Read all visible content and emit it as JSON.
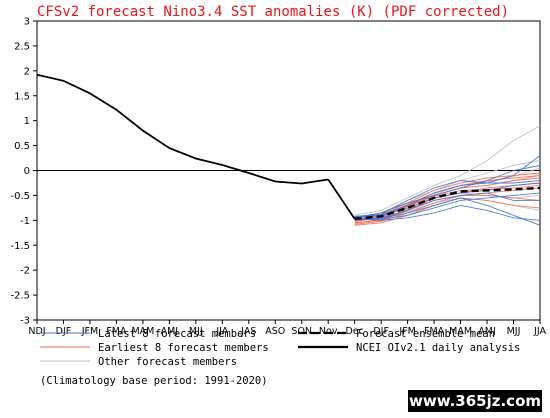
{
  "chart_data": {
    "type": "line",
    "title": "CFSv2 forecast Nino3.4 SST anomalies (K) (PDF corrected)",
    "title_color": "#e8151b",
    "categories": [
      "NDJ",
      "DJF",
      "JFM",
      "FMA",
      "MAM",
      "AMJ",
      "MJJ",
      "JJA",
      "JAS",
      "ASO",
      "SON",
      "Nov",
      "Dec",
      "DJF",
      "JFM",
      "FMA",
      "MAM",
      "AMJ",
      "MJJ",
      "JJA"
    ],
    "ylim": [
      -3,
      3
    ],
    "yticks": [
      "3",
      "2.5",
      "2",
      "1.5",
      "1",
      "0.5",
      "0",
      "-0.5",
      "-1",
      "-1.5",
      "-2",
      "-2.5",
      "-3"
    ],
    "zero_line": true,
    "observed": {
      "name": "NCEI OIv2.1 daily analysis",
      "color": "#000000",
      "x_index": [
        0,
        1,
        2,
        3,
        4,
        5,
        6,
        7,
        8,
        9,
        10,
        11
      ],
      "values": [
        1.92,
        1.8,
        1.55,
        1.22,
        0.8,
        0.45,
        0.24,
        0.11,
        -0.05,
        -0.22,
        -0.26,
        -0.18
      ]
    },
    "ensemble_mean": {
      "name": "Forecast ensemble mean",
      "color": "#000000",
      "x_index": [
        12,
        13,
        14,
        15,
        16,
        17,
        18,
        19
      ],
      "values": [
        -0.97,
        -0.92,
        -0.75,
        -0.55,
        -0.42,
        -0.4,
        -0.38,
        -0.35
      ]
    },
    "latest_members": {
      "name": "Latest 8 forecast members",
      "color": "#3f6fd6",
      "x_index": [
        12,
        13,
        14,
        15,
        16,
        17,
        18,
        19
      ],
      "members": [
        [
          -0.95,
          -0.9,
          -0.7,
          -0.45,
          -0.3,
          -0.25,
          -0.1,
          0.3
        ],
        [
          -0.98,
          -0.96,
          -0.85,
          -0.7,
          -0.55,
          -0.7,
          -0.9,
          -1.1
        ],
        [
          -0.92,
          -0.88,
          -0.6,
          -0.35,
          -0.2,
          -0.25,
          -0.25,
          -0.2
        ],
        [
          -0.96,
          -0.98,
          -0.9,
          -0.75,
          -0.6,
          -0.55,
          -0.5,
          -0.45
        ],
        [
          -1.0,
          -0.95,
          -0.8,
          -0.6,
          -0.5,
          -0.45,
          -0.6,
          -0.6
        ],
        [
          -0.94,
          -0.85,
          -0.65,
          -0.5,
          -0.35,
          -0.2,
          0.0,
          0.1
        ],
        [
          -0.97,
          -1.0,
          -0.95,
          -0.85,
          -0.7,
          -0.8,
          -0.95,
          -1.0
        ],
        [
          -0.93,
          -0.9,
          -0.75,
          -0.55,
          -0.45,
          -0.4,
          -0.3,
          -0.25
        ]
      ]
    },
    "earliest_members": {
      "name": "Earliest 8 forecast members",
      "color": "#f26b4f",
      "x_index": [
        12,
        13,
        14,
        15,
        16,
        17,
        18,
        19
      ],
      "members": [
        [
          -1.05,
          -1.0,
          -0.8,
          -0.55,
          -0.45,
          -0.35,
          -0.3,
          -0.25
        ],
        [
          -1.02,
          -0.95,
          -0.7,
          -0.5,
          -0.35,
          -0.3,
          -0.2,
          -0.15
        ],
        [
          -1.08,
          -1.02,
          -0.85,
          -0.65,
          -0.5,
          -0.45,
          -0.4,
          -0.35
        ],
        [
          -1.0,
          -0.9,
          -0.65,
          -0.4,
          -0.25,
          -0.15,
          -0.1,
          -0.05
        ],
        [
          -1.06,
          -0.98,
          -0.78,
          -0.6,
          -0.5,
          -0.5,
          -0.55,
          -0.6
        ],
        [
          -1.03,
          -0.93,
          -0.72,
          -0.52,
          -0.4,
          -0.38,
          -0.35,
          -0.3
        ],
        [
          -1.1,
          -1.05,
          -0.9,
          -0.7,
          -0.55,
          -0.6,
          -0.7,
          -0.75
        ],
        [
          -1.0,
          -0.92,
          -0.68,
          -0.45,
          -0.3,
          -0.2,
          -0.15,
          -0.1
        ]
      ]
    },
    "other_members": {
      "name": "Other forecast members",
      "color": "#bdbdbd",
      "x_index": [
        12,
        13,
        14,
        15,
        16,
        17,
        18,
        19
      ],
      "members": [
        [
          -0.9,
          -0.8,
          -0.55,
          -0.3,
          -0.1,
          0.2,
          0.6,
          0.9
        ],
        [
          -0.95,
          -0.85,
          -0.6,
          -0.4,
          -0.2,
          -0.05,
          0.1,
          0.2
        ],
        [
          -0.98,
          -0.92,
          -0.75,
          -0.55,
          -0.45,
          -0.5,
          -0.55,
          -0.5
        ],
        [
          -0.93,
          -0.88,
          -0.7,
          -0.5,
          -0.35,
          -0.3,
          -0.2,
          -0.1
        ],
        [
          -1.0,
          -0.96,
          -0.82,
          -0.65,
          -0.55,
          -0.6,
          -0.7,
          -0.8
        ],
        [
          -0.96,
          -0.9,
          -0.72,
          -0.48,
          -0.3,
          -0.22,
          -0.12,
          0.05
        ]
      ]
    },
    "legend": [
      {
        "label": "Latest 8 forecast members",
        "color": "#3f6fd6",
        "style": "solid-thin"
      },
      {
        "label": "Earliest 8 forecast members",
        "color": "#f26b4f",
        "style": "solid-thin"
      },
      {
        "label": "Other forecast members",
        "color": "#bdbdbd",
        "style": "solid-thin"
      },
      {
        "label": "Forecast ensemble mean",
        "color": "#000000",
        "style": "dashed-thick"
      },
      {
        "label": "NCEI OIv2.1 daily analysis",
        "color": "#000000",
        "style": "solid-thick"
      }
    ],
    "footnote": "(Climatology base period: 1991-2020)"
  },
  "watermark": "www.365jz.com"
}
